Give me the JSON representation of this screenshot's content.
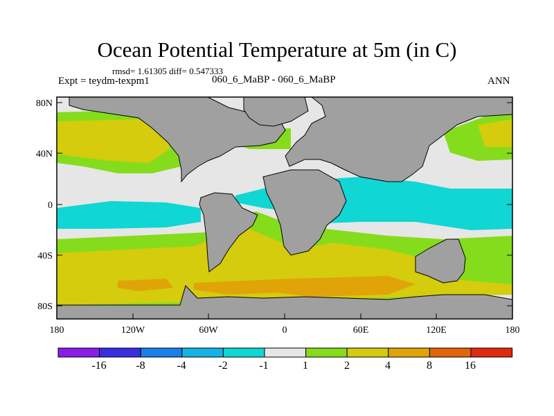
{
  "header": {
    "title": "Ocean Potential Temperature at 5m (in C)",
    "stats": "rmsd= 1.61305 diff= 0.547333",
    "left_label": "Expt = teydm-texpm1",
    "center_label": "060_6_MaBP - 060_6_MaBP",
    "right_label": "ANN"
  },
  "axes": {
    "y_ticks": [
      "80N",
      "40N",
      "0",
      "40S",
      "80S"
    ],
    "x_ticks": [
      "180",
      "120W",
      "60W",
      "0",
      "60E",
      "120E",
      "180"
    ]
  },
  "colorbar": {
    "colors": [
      "#8a1ee6",
      "#3a2fe0",
      "#1a7fe8",
      "#14b4e6",
      "#10d6d4",
      "#e6e6e6",
      "#84dc1c",
      "#d4cc0c",
      "#e0a408",
      "#e2640a",
      "#e02a0e"
    ],
    "labels": [
      "-16",
      "-8",
      "-4",
      "-2",
      "-1",
      "1",
      "2",
      "4",
      "8",
      "16"
    ]
  },
  "map_colors": {
    "land": "#a0a0a0",
    "neutral": "#e6e6e6",
    "green": "#84dc1c",
    "yellow": "#d4cc0c",
    "orange": "#e0a408",
    "cyan": "#10d6d4"
  }
}
